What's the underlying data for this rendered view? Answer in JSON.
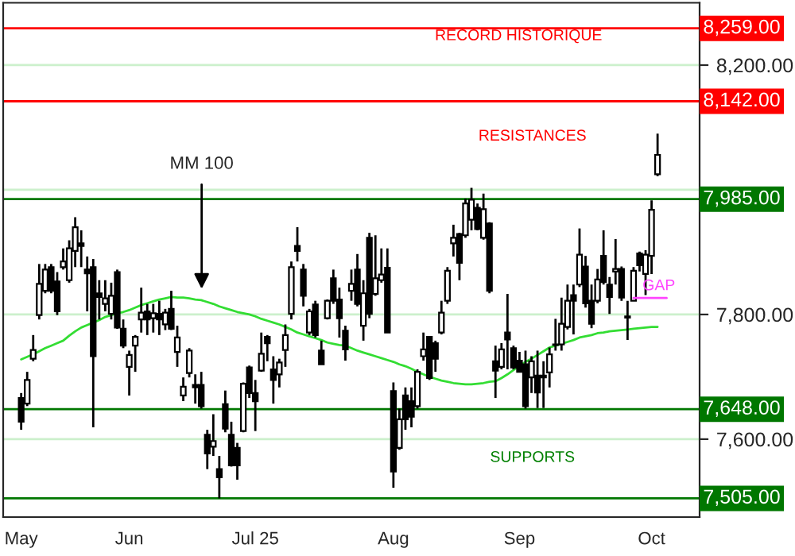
{
  "chart_data": {
    "type": "candlestick",
    "categories": [
      "May",
      null,
      null,
      null,
      null,
      null,
      null,
      null,
      null,
      null,
      null,
      null,
      null,
      null,
      null,
      null,
      null,
      null,
      "Jun",
      null,
      null,
      null,
      null,
      null,
      null,
      null,
      null,
      null,
      null,
      null,
      null,
      null,
      null,
      null,
      null,
      null,
      null,
      null,
      null,
      "Jul 25",
      null,
      null,
      null,
      null,
      null,
      null,
      null,
      null,
      null,
      null,
      null,
      null,
      null,
      null,
      null,
      null,
      null,
      null,
      null,
      null,
      null,
      null,
      "Aug",
      null,
      null,
      null,
      null,
      null,
      null,
      null,
      null,
      null,
      null,
      null,
      null,
      null,
      null,
      null,
      null,
      null,
      null,
      null,
      null,
      "Sep",
      null,
      null,
      null,
      null,
      null,
      null,
      null,
      null,
      null,
      null,
      null,
      null,
      null,
      null,
      null,
      null,
      null,
      null,
      null,
      null,
      null,
      "Oct",
      null
    ],
    "ohlc": [
      [
        7666,
        7674,
        7615,
        7628
      ],
      [
        7657,
        7708,
        7653,
        7695
      ],
      [
        7729,
        7767,
        7725,
        7743
      ],
      [
        7799,
        7881,
        7792,
        7849
      ],
      [
        7838,
        7881,
        7834,
        7872
      ],
      [
        7876,
        7881,
        7834,
        7838
      ],
      [
        7853,
        7868,
        7799,
        7805
      ],
      [
        7876,
        7906,
        7872,
        7885
      ],
      [
        7855,
        7919,
        7851,
        7906
      ],
      [
        7902,
        7956,
        7876,
        7940
      ],
      [
        7914,
        7935,
        7876,
        7910
      ],
      [
        7872,
        7893,
        7805,
        7866
      ],
      [
        7876,
        7889,
        7619,
        7733
      ],
      [
        7834,
        7855,
        7792,
        7828
      ],
      [
        7817,
        7855,
        7805,
        7826
      ],
      [
        7801,
        7851,
        7792,
        7830
      ],
      [
        7868,
        7872,
        7777,
        7779
      ],
      [
        7777,
        7792,
        7746,
        7750
      ],
      [
        7716,
        7742,
        7670,
        7735
      ],
      [
        7750,
        7767,
        7708,
        7764
      ],
      [
        7792,
        7843,
        7771,
        7803
      ],
      [
        7805,
        7817,
        7767,
        7792
      ],
      [
        7794,
        7817,
        7771,
        7802
      ],
      [
        7801,
        7822,
        7767,
        7792
      ],
      [
        7784,
        7809,
        7775,
        7803
      ],
      [
        7809,
        7838,
        7775,
        7777
      ],
      [
        7740,
        7782,
        7716,
        7763
      ],
      [
        7670,
        7699,
        7661,
        7684
      ],
      [
        7706,
        7746,
        7699,
        7742
      ],
      [
        7687,
        7704,
        7657,
        7683
      ],
      [
        7687,
        7708,
        7649,
        7653
      ],
      [
        7607,
        7615,
        7552,
        7577
      ],
      [
        7588,
        7640,
        7573,
        7597
      ],
      [
        7552,
        7573,
        7505,
        7539
      ],
      [
        7656,
        7678,
        7611,
        7617
      ],
      [
        7607,
        7628,
        7556,
        7558
      ],
      [
        7586,
        7594,
        7535,
        7558
      ],
      [
        7613,
        7691,
        7611,
        7689
      ],
      [
        7715,
        7718,
        7666,
        7674
      ],
      [
        7674,
        7695,
        7613,
        7661
      ],
      [
        7710,
        7771,
        7708,
        7737
      ],
      [
        7764,
        7767,
        7725,
        7754
      ],
      [
        7712,
        7733,
        7657,
        7695
      ],
      [
        7704,
        7729,
        7683,
        7723
      ],
      [
        7743,
        7784,
        7716,
        7767
      ],
      [
        7801,
        7885,
        7792,
        7876
      ],
      [
        7910,
        7940,
        7885,
        7902
      ],
      [
        7872,
        7881,
        7813,
        7830
      ],
      [
        7771,
        7809,
        7767,
        7805
      ],
      [
        7816,
        7822,
        7763,
        7767
      ],
      [
        7742,
        7758,
        7720,
        7720
      ],
      [
        7794,
        7824,
        7792,
        7822
      ],
      [
        7858,
        7872,
        7817,
        7822
      ],
      [
        7824,
        7843,
        7763,
        7794
      ],
      [
        7774,
        7782,
        7726,
        7744
      ],
      [
        7838,
        7872,
        7822,
        7849
      ],
      [
        7872,
        7897,
        7813,
        7817
      ],
      [
        7782,
        7855,
        7758,
        7834
      ],
      [
        7923,
        7931,
        7794,
        7801
      ],
      [
        7833,
        7927,
        7830,
        7858
      ],
      [
        7855,
        7906,
        7851,
        7864
      ],
      [
        7875,
        7906,
        7771,
        7771
      ],
      [
        7677,
        7691,
        7522,
        7548
      ],
      [
        7586,
        7649,
        7583,
        7632
      ],
      [
        7670,
        7683,
        7615,
        7632
      ],
      [
        7661,
        7683,
        7619,
        7636
      ],
      [
        7653,
        7712,
        7649,
        7708
      ],
      [
        7733,
        7771,
        7726,
        7744
      ],
      [
        7764,
        7764,
        7695,
        7698
      ],
      [
        7754,
        7758,
        7708,
        7729
      ],
      [
        7771,
        7822,
        7768,
        7803
      ],
      [
        7822,
        7876,
        7817,
        7870
      ],
      [
        7914,
        7944,
        7893,
        7923
      ],
      [
        7929,
        7931,
        7855,
        7883
      ],
      [
        7927,
        7986,
        7923,
        7978
      ],
      [
        7952,
        8003,
        7935,
        7984
      ],
      [
        7971,
        7978,
        7935,
        7937
      ],
      [
        7923,
        7994,
        7920,
        7969
      ],
      [
        7946,
        7948,
        7834,
        7838
      ],
      [
        7725,
        7750,
        7666,
        7710
      ],
      [
        7716,
        7754,
        7712,
        7744
      ],
      [
        7771,
        7833,
        7712,
        7760
      ],
      [
        7746,
        7750,
        7712,
        7715
      ],
      [
        7726,
        7740,
        7708,
        7708
      ],
      [
        7720,
        7742,
        7649,
        7653
      ],
      [
        7699,
        7733,
        7674,
        7725
      ],
      [
        7702,
        7742,
        7650,
        7675
      ],
      [
        7702,
        7725,
        7650,
        7699
      ],
      [
        7707,
        7747,
        7683,
        7736
      ],
      [
        7751,
        7793,
        7742,
        7752
      ],
      [
        7752,
        7827,
        7742,
        7785
      ],
      [
        7780,
        7848,
        7776,
        7822
      ],
      [
        7831,
        7848,
        7768,
        7822
      ],
      [
        7848,
        7938,
        7844,
        7896
      ],
      [
        7877,
        7894,
        7811,
        7818
      ],
      [
        7822,
        7848,
        7778,
        7785
      ],
      [
        7822,
        7873,
        7818,
        7856
      ],
      [
        7894,
        7935,
        7848,
        7852
      ],
      [
        7848,
        7860,
        7801,
        7828
      ],
      [
        7869,
        7921,
        7848,
        7873
      ],
      [
        7873,
        7877,
        7822,
        7827
      ],
      [
        7797,
        7822,
        7759,
        7795
      ],
      [
        7822,
        7876,
        7822,
        7870
      ],
      [
        7898,
        7901,
        7869,
        7879
      ],
      [
        7865,
        7903,
        7831,
        7896
      ],
      [
        7894,
        7983,
        7865,
        7968
      ],
      [
        8025,
        8090,
        8022,
        8056
      ]
    ],
    "series": [
      {
        "type": "line",
        "name": "MM 100",
        "color": "#33dd33",
        "values": [
          7728,
          7732,
          7736,
          7741,
          7746,
          7750,
          7754,
          7758,
          7766,
          7773,
          7779,
          7783,
          7787,
          7791,
          7796,
          7799,
          7802,
          7804,
          7807,
          7811,
          7815,
          7818,
          7821,
          7824,
          7826,
          7828,
          7827,
          7827,
          7826,
          7824,
          7823,
          7820,
          7817,
          7813,
          7810,
          7807,
          7804,
          7802,
          7800,
          7797,
          7793,
          7790,
          7787,
          7784,
          7780,
          7776,
          7771,
          7768,
          7765,
          7762,
          7759,
          7755,
          7753,
          7751,
          7750,
          7746,
          7742,
          7739,
          7736,
          7733,
          7730,
          7727,
          7724,
          7720,
          7717,
          7713,
          7708,
          7704,
          7700,
          7697,
          7694,
          7692,
          7690,
          7689,
          7688,
          7688,
          7689,
          7690,
          7692,
          7693,
          7698,
          7704,
          7711,
          7718,
          7724,
          7729,
          7735,
          7741,
          7747,
          7750,
          7753,
          7756,
          7759,
          7763,
          7765,
          7767,
          7770,
          7771,
          7773,
          7774,
          7775,
          7776,
          7777,
          7778,
          7779,
          7780,
          7780
        ]
      }
    ],
    "ylim": [
      7475,
      8300
    ],
    "yticks": [
      {
        "value": 7600,
        "label": "7,600.00"
      },
      {
        "value": 7800,
        "label": "7,800.00"
      },
      {
        "value": 8000,
        "label": null
      },
      {
        "value": 8200,
        "label": "8,200.00"
      }
    ],
    "grid": "y",
    "ref_lines": [
      {
        "axis": "y",
        "value": 8259,
        "label": "8,259.00",
        "color": "#ff0000"
      },
      {
        "axis": "y",
        "value": 8142,
        "label": "8,142.00",
        "color": "#ff0000"
      },
      {
        "axis": "y",
        "value": 7985,
        "label": "7,985.00",
        "color": "#007700"
      },
      {
        "axis": "y",
        "value": 7648,
        "label": "7,648.00",
        "color": "#007700"
      },
      {
        "axis": "y",
        "value": 7505,
        "label": "7,505.00",
        "color": "#007700"
      }
    ],
    "annotations": [
      "RECORD HISTORIQUE",
      "RESISTANCES",
      "SUPPORTS",
      "GAP"
    ]
  }
}
